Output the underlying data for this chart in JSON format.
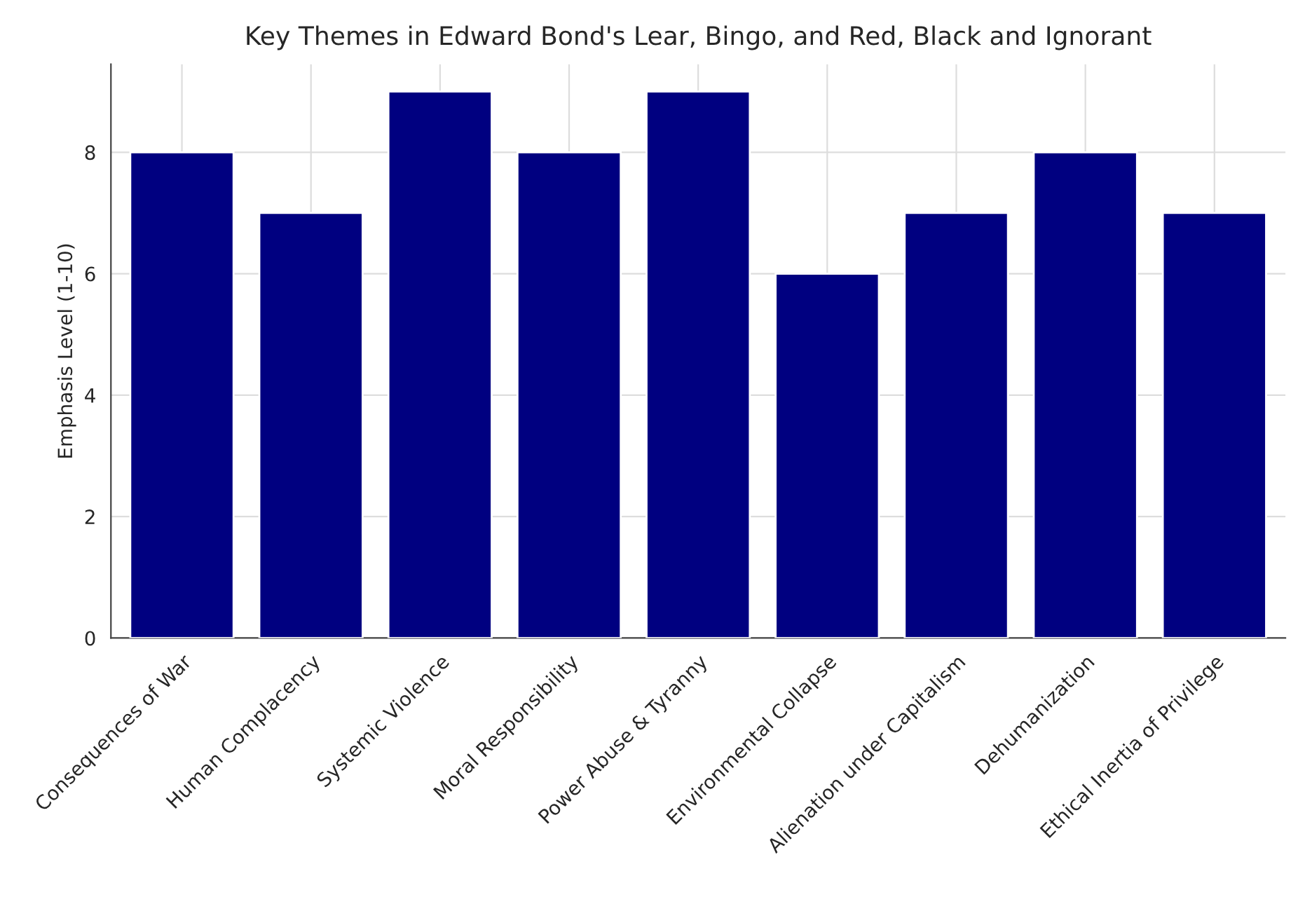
{
  "chart_data": {
    "type": "bar",
    "title": "Key Themes in Edward Bond's Lear, Bingo, and Red, Black and Ignorant",
    "ylabel": "Emphasis Level (1-10)",
    "categories": [
      "Consequences of War",
      "Human Complacency",
      "Systemic Violence",
      "Moral Responsibility",
      "Power Abuse & Tyranny",
      "Environmental Collapse",
      "Alienation under Capitalism",
      "Dehumanization",
      "Ethical Inertia of Privilege"
    ],
    "values": [
      8,
      7,
      9,
      8,
      9,
      6,
      7,
      8,
      7
    ],
    "color": "#000080",
    "ylim": [
      0,
      9.45
    ],
    "yticks": [
      0,
      2,
      4,
      6,
      8
    ],
    "grid": true
  }
}
